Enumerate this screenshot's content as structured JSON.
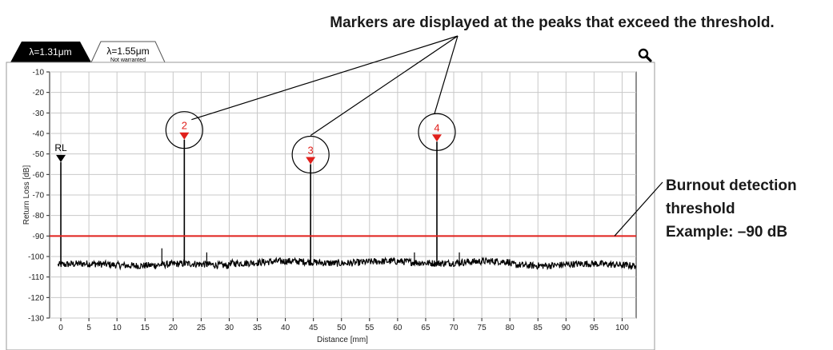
{
  "tabs": [
    {
      "label": "λ=1.31μm",
      "sublabel": "",
      "active": true
    },
    {
      "label": "λ=1.55μm",
      "sublabel": "Not warranted",
      "active": false
    }
  ],
  "icons": {
    "zoom": "magnifier-icon"
  },
  "annotations": {
    "markers_note": "Markers are displayed at the peaks that exceed the threshold.",
    "threshold_note": [
      "Burnout detection",
      "threshold",
      "Example: –90 dB"
    ]
  },
  "colors": {
    "threshold": "#e0201c",
    "marker": "#e0201c",
    "trace": "#000000",
    "grid": "#c8c8c8"
  },
  "chart_data": {
    "type": "line",
    "title": "",
    "xlabel": "Distance [mm]",
    "ylabel": "Return Loss [dB]",
    "xlim": [
      -2,
      102.5
    ],
    "ylim": [
      -130,
      -10
    ],
    "xticks": [
      0,
      5,
      10,
      15,
      20,
      25,
      30,
      35,
      40,
      45,
      50,
      55,
      60,
      65,
      70,
      75,
      80,
      85,
      90,
      95,
      100
    ],
    "yticks": [
      -10,
      -20,
      -30,
      -40,
      -50,
      -60,
      -70,
      -80,
      -90,
      -100,
      -110,
      -120,
      -130
    ],
    "grid": true,
    "noise_floor": -104,
    "threshold": -90,
    "peaks": [
      {
        "x": 0,
        "y": -54,
        "label": "RL"
      },
      {
        "x": 22,
        "y": -43,
        "label": "2"
      },
      {
        "x": 44.5,
        "y": -55,
        "label": "3"
      },
      {
        "x": 67,
        "y": -44,
        "label": "4"
      }
    ],
    "minor_peaks": [
      {
        "x": 18,
        "y": -96
      },
      {
        "x": 26,
        "y": -98
      },
      {
        "x": 63,
        "y": -98
      },
      {
        "x": 71,
        "y": -98
      }
    ]
  }
}
